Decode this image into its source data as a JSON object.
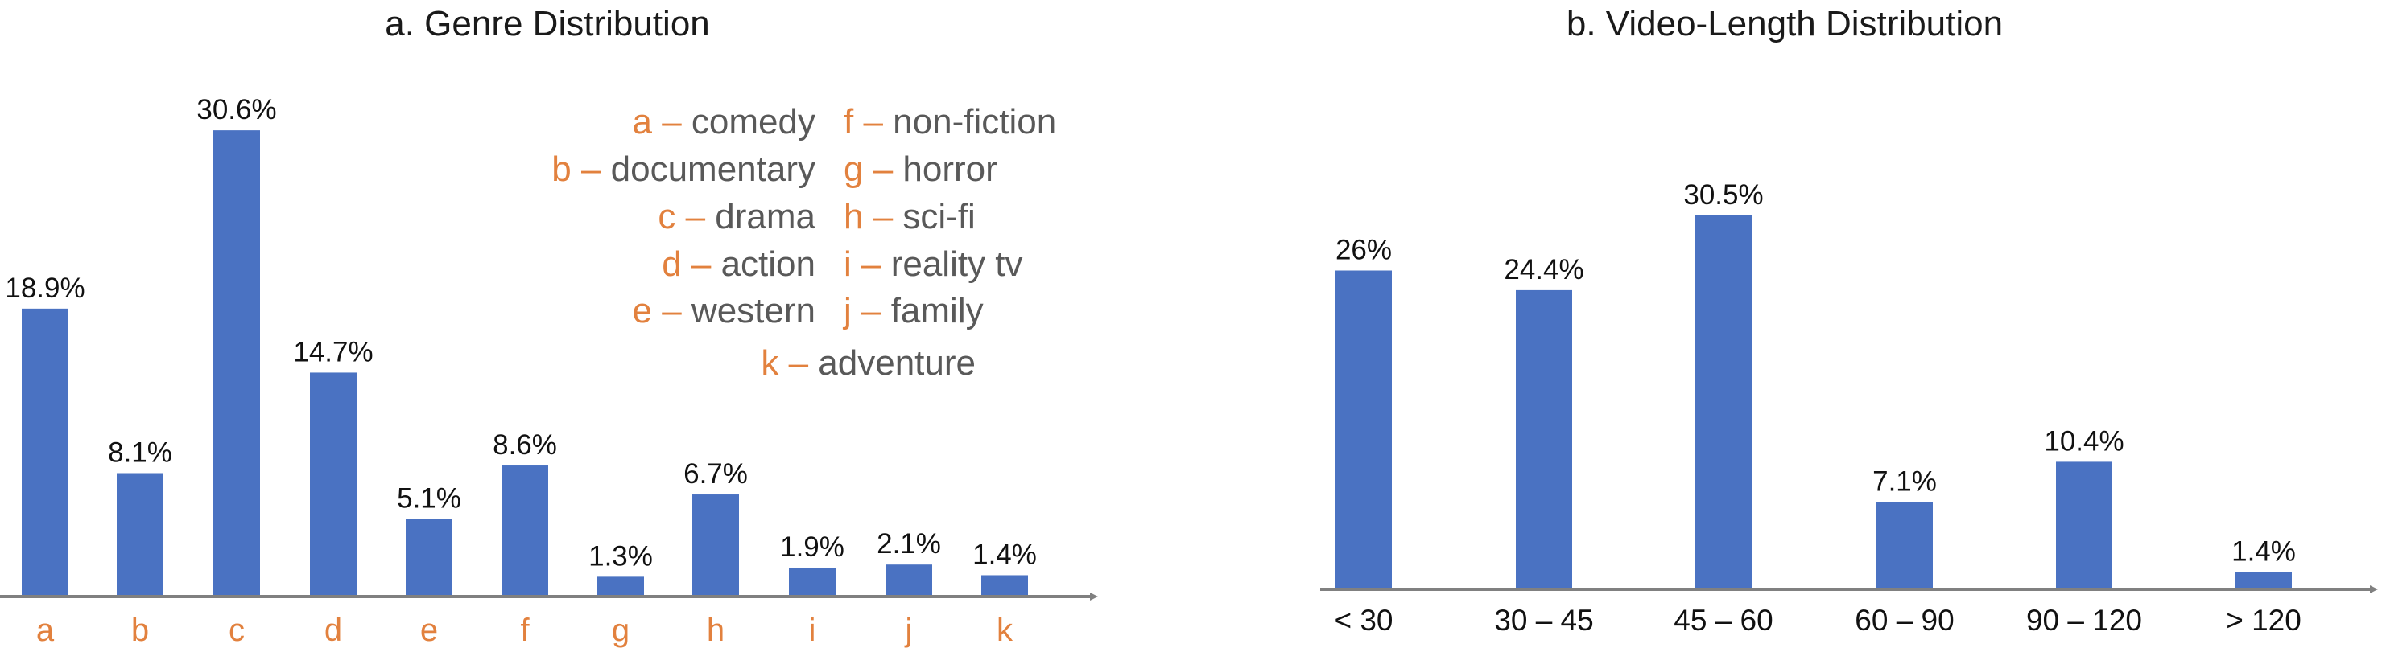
{
  "colors": {
    "bar": "#4a72c2",
    "axis": "#808080",
    "accent": "#e2813e",
    "text": "#595959"
  },
  "chart_data": [
    {
      "type": "bar",
      "title": "a. Genre Distribution",
      "categories": [
        "a",
        "b",
        "c",
        "d",
        "e",
        "f",
        "g",
        "h",
        "i",
        "j",
        "k"
      ],
      "values": [
        18.9,
        8.1,
        30.6,
        14.7,
        5.1,
        8.6,
        1.3,
        6.7,
        1.9,
        2.1,
        1.4
      ],
      "value_labels": [
        "18.9%",
        "8.1%",
        "30.6%",
        "14.7%",
        "5.1%",
        "8.6%",
        "1.3%",
        "6.7%",
        "1.9%",
        "2.1%",
        "1.4%"
      ],
      "ylim": [
        0,
        31
      ],
      "grid": false,
      "legend": [
        {
          "key": "a –",
          "name": "comedy"
        },
        {
          "key": "b –",
          "name": "documentary"
        },
        {
          "key": "c –",
          "name": "drama"
        },
        {
          "key": "d –",
          "name": "action"
        },
        {
          "key": "e –",
          "name": "western"
        },
        {
          "key": "f –",
          "name": "non-fiction"
        },
        {
          "key": "g –",
          "name": "horror"
        },
        {
          "key": "h –",
          "name": "sci-fi"
        },
        {
          "key": "i –",
          "name": "reality tv"
        },
        {
          "key": "j –",
          "name": "family"
        },
        {
          "key": "k –",
          "name": "adventure"
        }
      ]
    },
    {
      "type": "bar",
      "title": "b. Video-Length Distribution",
      "categories": [
        "< 30",
        "30 – 45",
        "45 – 60",
        "60 – 90",
        "90 – 120",
        "> 120"
      ],
      "values": [
        26,
        24.4,
        30.5,
        7.1,
        10.4,
        1.4
      ],
      "value_labels": [
        "26%",
        "24.4%",
        "30.5%",
        "7.1%",
        "10.4%",
        "1.4%"
      ],
      "ylim": [
        0,
        31
      ],
      "grid": false
    }
  ]
}
